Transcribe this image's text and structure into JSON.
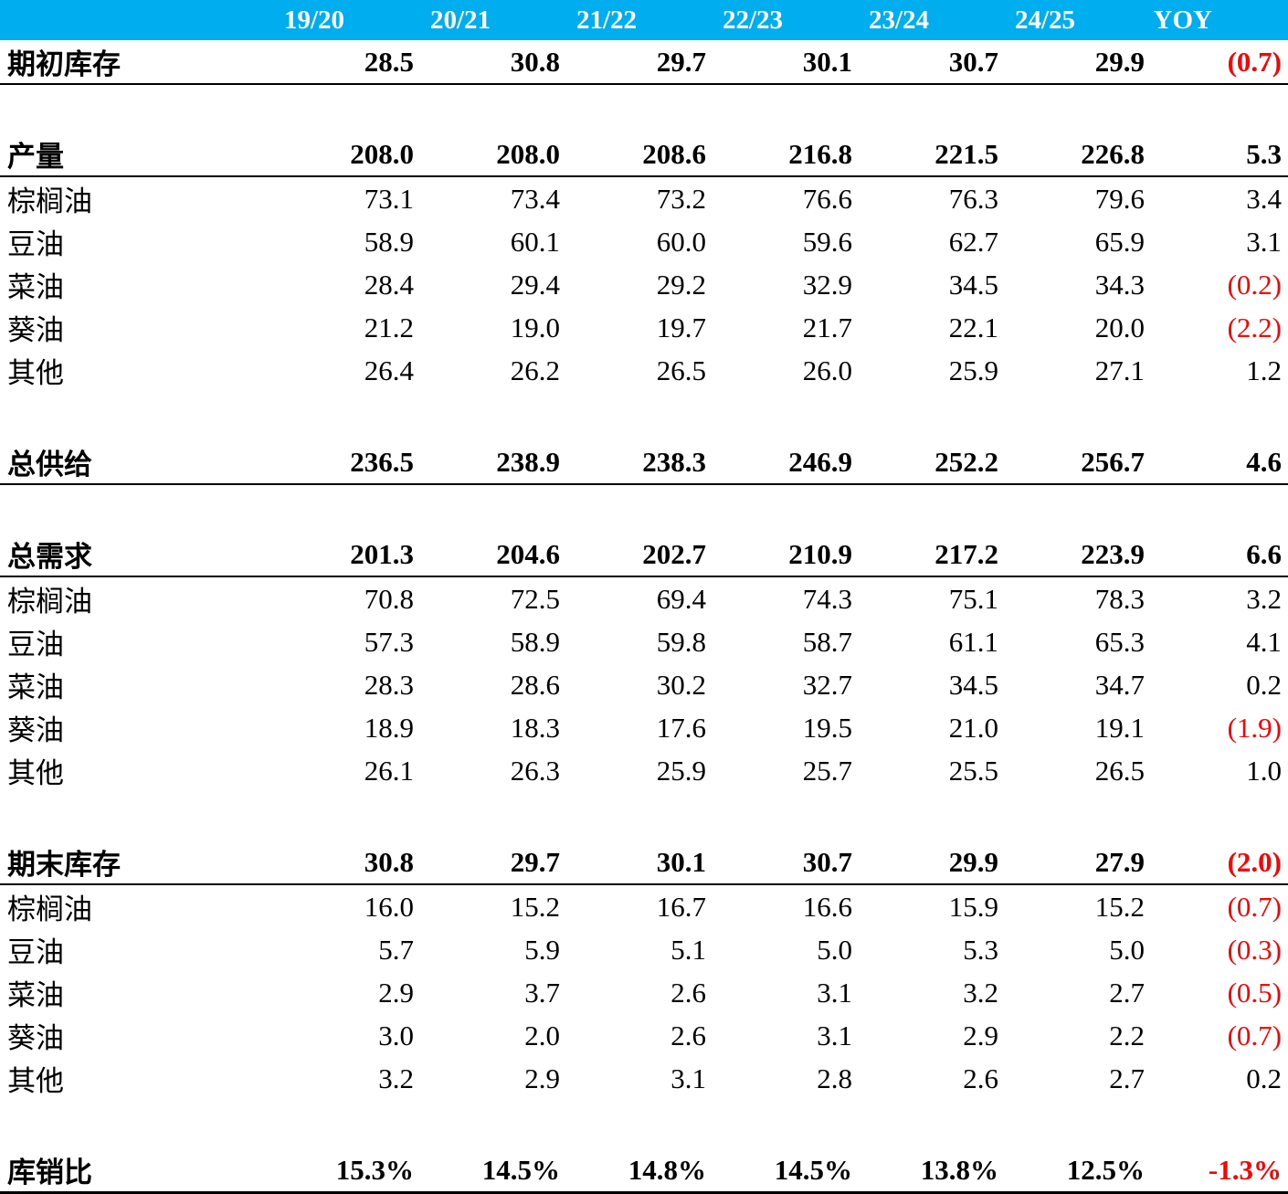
{
  "colors": {
    "header_bg": "#00AEEF",
    "header_fg": "#FFFFFF",
    "text": "#000000",
    "negative": "#FF0000"
  },
  "table": {
    "columns": [
      "19/20",
      "20/21",
      "21/22",
      "22/23",
      "23/24",
      "24/25",
      "YOY"
    ],
    "rows": [
      {
        "label": "期初库存",
        "type": "section",
        "values": [
          "28.5",
          "30.8",
          "29.7",
          "30.1",
          "30.7",
          "29.9"
        ],
        "yoy": "(0.7)",
        "yoy_red": true,
        "rule_below": "thin",
        "spacer_before": false
      },
      {
        "label": "产量",
        "type": "section",
        "values": [
          "208.0",
          "208.0",
          "208.6",
          "216.8",
          "221.5",
          "226.8"
        ],
        "yoy": "5.3",
        "yoy_red": false,
        "rule_below": "thin",
        "spacer_before": true
      },
      {
        "label": "棕榈油",
        "type": "sub",
        "values": [
          "73.1",
          "73.4",
          "73.2",
          "76.6",
          "76.3",
          "79.6"
        ],
        "yoy": "3.4",
        "yoy_red": false,
        "rule_below": null,
        "spacer_before": false
      },
      {
        "label": "豆油",
        "type": "sub",
        "values": [
          "58.9",
          "60.1",
          "60.0",
          "59.6",
          "62.7",
          "65.9"
        ],
        "yoy": "3.1",
        "yoy_red": false,
        "rule_below": null,
        "spacer_before": false
      },
      {
        "label": "菜油",
        "type": "sub",
        "values": [
          "28.4",
          "29.4",
          "29.2",
          "32.9",
          "34.5",
          "34.3"
        ],
        "yoy": "(0.2)",
        "yoy_red": true,
        "rule_below": null,
        "spacer_before": false
      },
      {
        "label": "葵油",
        "type": "sub",
        "values": [
          "21.2",
          "19.0",
          "19.7",
          "21.7",
          "22.1",
          "20.0"
        ],
        "yoy": "(2.2)",
        "yoy_red": true,
        "rule_below": null,
        "spacer_before": false
      },
      {
        "label": "其他",
        "type": "sub",
        "values": [
          "26.4",
          "26.2",
          "26.5",
          "26.0",
          "25.9",
          "27.1"
        ],
        "yoy": "1.2",
        "yoy_red": false,
        "rule_below": null,
        "spacer_before": false
      },
      {
        "label": "总供给",
        "type": "section",
        "values": [
          "236.5",
          "238.9",
          "238.3",
          "246.9",
          "252.2",
          "256.7"
        ],
        "yoy": "4.6",
        "yoy_red": false,
        "rule_below": "thin",
        "spacer_before": true
      },
      {
        "label": "总需求",
        "type": "section",
        "values": [
          "201.3",
          "204.6",
          "202.7",
          "210.9",
          "217.2",
          "223.9"
        ],
        "yoy": "6.6",
        "yoy_red": false,
        "rule_below": "thin",
        "spacer_before": true
      },
      {
        "label": "棕榈油",
        "type": "sub",
        "values": [
          "70.8",
          "72.5",
          "69.4",
          "74.3",
          "75.1",
          "78.3"
        ],
        "yoy": "3.2",
        "yoy_red": false,
        "rule_below": null,
        "spacer_before": false
      },
      {
        "label": "豆油",
        "type": "sub",
        "values": [
          "57.3",
          "58.9",
          "59.8",
          "58.7",
          "61.1",
          "65.3"
        ],
        "yoy": "4.1",
        "yoy_red": false,
        "rule_below": null,
        "spacer_before": false
      },
      {
        "label": "菜油",
        "type": "sub",
        "values": [
          "28.3",
          "28.6",
          "30.2",
          "32.7",
          "34.5",
          "34.7"
        ],
        "yoy": "0.2",
        "yoy_red": false,
        "rule_below": null,
        "spacer_before": false
      },
      {
        "label": "葵油",
        "type": "sub",
        "values": [
          "18.9",
          "18.3",
          "17.6",
          "19.5",
          "21.0",
          "19.1"
        ],
        "yoy": "(1.9)",
        "yoy_red": true,
        "rule_below": null,
        "spacer_before": false
      },
      {
        "label": "其他",
        "type": "sub",
        "values": [
          "26.1",
          "26.3",
          "25.9",
          "25.7",
          "25.5",
          "26.5"
        ],
        "yoy": "1.0",
        "yoy_red": false,
        "rule_below": null,
        "spacer_before": false
      },
      {
        "label": "期末库存",
        "type": "section",
        "values": [
          "30.8",
          "29.7",
          "30.1",
          "30.7",
          "29.9",
          "27.9"
        ],
        "yoy": "(2.0)",
        "yoy_red": true,
        "rule_below": "thin",
        "spacer_before": true
      },
      {
        "label": "棕榈油",
        "type": "sub",
        "values": [
          "16.0",
          "15.2",
          "16.7",
          "16.6",
          "15.9",
          "15.2"
        ],
        "yoy": "(0.7)",
        "yoy_red": true,
        "rule_below": null,
        "spacer_before": false
      },
      {
        "label": "豆油",
        "type": "sub",
        "values": [
          "5.7",
          "5.9",
          "5.1",
          "5.0",
          "5.3",
          "5.0"
        ],
        "yoy": "(0.3)",
        "yoy_red": true,
        "rule_below": null,
        "spacer_before": false
      },
      {
        "label": "菜油",
        "type": "sub",
        "values": [
          "2.9",
          "3.7",
          "2.6",
          "3.1",
          "3.2",
          "2.7"
        ],
        "yoy": "(0.5)",
        "yoy_red": true,
        "rule_below": null,
        "spacer_before": false
      },
      {
        "label": "葵油",
        "type": "sub",
        "values": [
          "3.0",
          "2.0",
          "2.6",
          "3.1",
          "2.9",
          "2.2"
        ],
        "yoy": "(0.7)",
        "yoy_red": true,
        "rule_below": null,
        "spacer_before": false
      },
      {
        "label": "其他",
        "type": "sub",
        "values": [
          "3.2",
          "2.9",
          "3.1",
          "2.8",
          "2.6",
          "2.7"
        ],
        "yoy": "0.2",
        "yoy_red": false,
        "rule_below": null,
        "spacer_before": false
      },
      {
        "label": "库销比",
        "type": "section",
        "values": [
          "15.3%",
          "14.5%",
          "14.8%",
          "14.5%",
          "13.8%",
          "12.5%"
        ],
        "yoy": "-1.3%",
        "yoy_red": true,
        "rule_below": "thick",
        "spacer_before": true
      }
    ]
  }
}
